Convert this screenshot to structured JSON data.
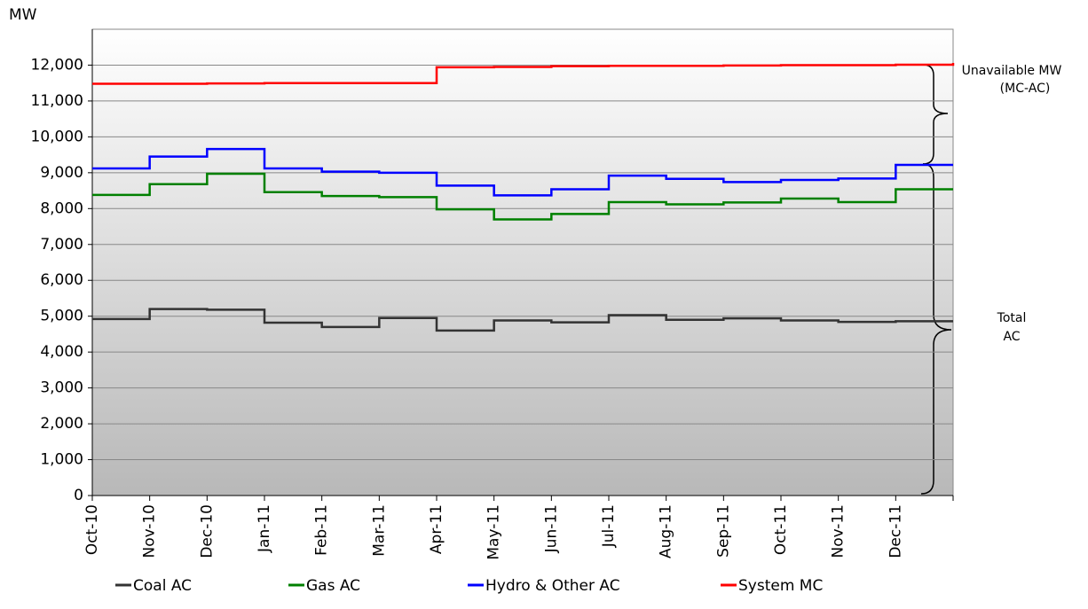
{
  "chart_data": {
    "type": "line",
    "y_label": "MW",
    "categories": [
      "Oct-10",
      "Nov-10",
      "Dec-10",
      "Jan-11",
      "Feb-11",
      "Mar-11",
      "Apr-11",
      "May-11",
      "Jun-11",
      "Jul-11",
      "Aug-11",
      "Sep-11",
      "Oct-11",
      "Nov-11",
      "Dec-11",
      null
    ],
    "series": [
      {
        "name": "Coal AC",
        "color": "#333333",
        "values": [
          4920,
          5200,
          5180,
          4820,
          4700,
          4950,
          4600,
          4880,
          4830,
          5030,
          4900,
          4940,
          4880,
          4840,
          4860,
          4860
        ]
      },
      {
        "name": "Gas AC",
        "color": "#008000",
        "values": [
          8380,
          8680,
          8970,
          8460,
          8350,
          8320,
          7980,
          7700,
          7850,
          8180,
          8120,
          8170,
          8280,
          8180,
          8540,
          8540
        ]
      },
      {
        "name": "Hydro & Other AC",
        "color": "#0000ff",
        "values": [
          9120,
          9450,
          9660,
          9120,
          9030,
          9000,
          8640,
          8370,
          8540,
          8920,
          8830,
          8740,
          8800,
          8840,
          9220,
          9220
        ]
      },
      {
        "name": "System MC",
        "color": "#ff0000",
        "values": [
          11480,
          11480,
          11490,
          11500,
          11500,
          11500,
          11940,
          11950,
          11970,
          11980,
          11980,
          11990,
          12000,
          12000,
          12010,
          12060
        ]
      }
    ],
    "ylim": [
      0,
      13000
    ],
    "yticks": [
      0,
      {
        "value": 1000,
        "label": "1,000"
      },
      {
        "value": 2000,
        "label": "2,000"
      },
      {
        "value": 3000,
        "label": "3,000"
      },
      {
        "value": 4000,
        "label": "4,000"
      },
      {
        "value": 5000,
        "label": "5,000"
      },
      {
        "value": 6000,
        "label": "6,000"
      },
      {
        "value": 7000,
        "label": "7,000"
      },
      {
        "value": 8000,
        "label": "8,000"
      },
      {
        "value": 9000,
        "label": "9,000"
      },
      {
        "value": 10000,
        "label": "10,000"
      },
      {
        "value": 11000,
        "label": "11,000"
      },
      {
        "value": 12000,
        "label": "12,000"
      }
    ],
    "grid": true,
    "legend": "bottom",
    "annotations": [
      "Unavailable MW",
      "(MC-AC)",
      "Total",
      "AC"
    ]
  }
}
